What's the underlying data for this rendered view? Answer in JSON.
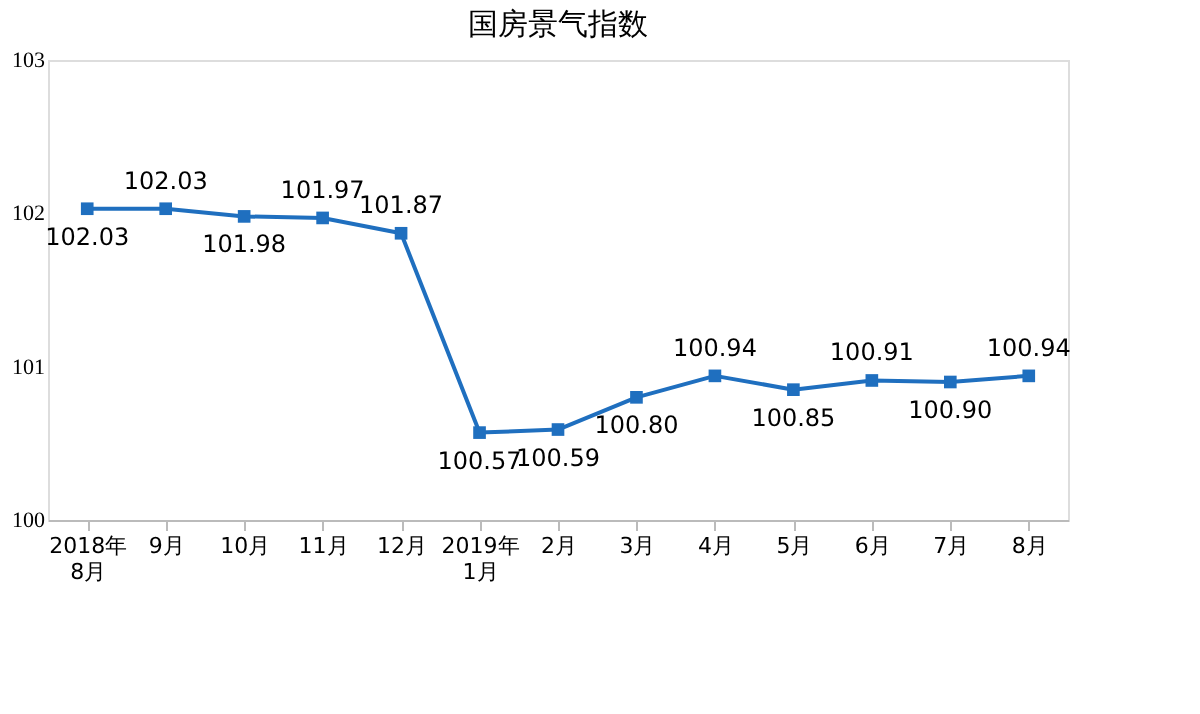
{
  "chart_data": {
    "type": "line",
    "title": "国房景气指数",
    "categories": [
      "2018年\n8月",
      "9月",
      "10月",
      "11月",
      "12月",
      "2019年\n1月",
      "2月",
      "3月",
      "4月",
      "5月",
      "6月",
      "7月",
      "8月"
    ],
    "series": [
      {
        "color": "#1f6fbf",
        "values": [
          102.03,
          102.03,
          101.98,
          101.97,
          101.87,
          100.57,
          100.59,
          100.8,
          100.94,
          100.85,
          100.91,
          100.9,
          100.94
        ],
        "value_labels": [
          "102.03",
          "102.03",
          "101.98",
          "101.97",
          "101.87",
          "100.57",
          "100.59",
          "100.80",
          "100.94",
          "100.85",
          "100.91",
          "100.90",
          "100.94"
        ]
      }
    ],
    "ylim": [
      100,
      103
    ],
    "yticks": [
      100,
      101,
      102,
      103
    ],
    "grid": false,
    "marker": "square"
  }
}
